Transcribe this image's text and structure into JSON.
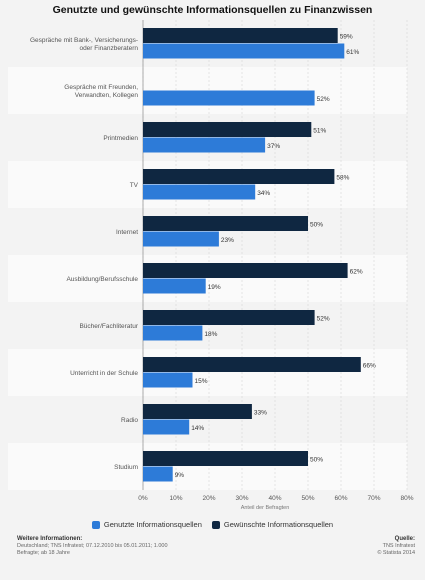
{
  "chart_data": {
    "type": "bar",
    "orientation": "horizontal",
    "title": "Genutzte und gewünschte Informationsquellen zu Finanzwissen",
    "xlabel": "Anteil der Befragten",
    "ylabel": "",
    "xlim": [
      0,
      80
    ],
    "x_ticks": [
      "0%",
      "10%",
      "20%",
      "30%",
      "40%",
      "50%",
      "60%",
      "70%",
      "80%"
    ],
    "grid": true,
    "legend_position": "bottom",
    "categories": [
      "Gespräche mit Bank-, Versicherungs- oder Finanzberatern",
      "Gespräche mit Freunden, Verwandten, Kollegen",
      "Printmedien",
      "TV",
      "Internet",
      "Ausbildung/Berufsschule",
      "Bücher/Fachliteratur",
      "Unterricht in der Schule",
      "Radio",
      "Studium"
    ],
    "category_lines": [
      [
        "Gespräche mit Bank-, Versicherungs-",
        "oder Finanzberatern"
      ],
      [
        "Gespräche mit Freunden,",
        "Verwandten, Kollegen"
      ],
      [
        "Printmedien"
      ],
      [
        "TV"
      ],
      [
        "Internet"
      ],
      [
        "Ausbildung/Berufsschule"
      ],
      [
        "Bücher/Fachliteratur"
      ],
      [
        "Unterricht in der Schule"
      ],
      [
        "Radio"
      ],
      [
        "Studium"
      ]
    ],
    "series": [
      {
        "name": "Gewünschte Informationsquellen",
        "color": "#0f2741",
        "values": [
          59,
          null,
          51,
          58,
          50,
          62,
          52,
          66,
          33,
          50
        ],
        "labels": [
          "59%",
          "",
          "51%",
          "58%",
          "50%",
          "62%",
          "52%",
          "66%",
          "33%",
          "50%"
        ]
      },
      {
        "name": "Genutzte Informationsquellen",
        "color": "#2d7bd8",
        "values": [
          61,
          52,
          37,
          34,
          23,
          19,
          18,
          15,
          14,
          9
        ],
        "labels": [
          "61%",
          "52%",
          "37%",
          "34%",
          "23%",
          "19%",
          "18%",
          "15%",
          "14%",
          "9%"
        ]
      }
    ]
  },
  "legend": {
    "items": [
      {
        "label": "Genutzte Informationsquellen",
        "color": "#2d7bd8"
      },
      {
        "label": "Gewünschte Informationsquellen",
        "color": "#0f2741"
      }
    ]
  },
  "footer": {
    "info_heading": "Weitere Informationen:",
    "info_line1": "Deutschland; TNS Infratest; 07.12.2010 bis 05.01.2011; 1.000",
    "info_line2": "Befragte; ab 18 Jahre",
    "source_heading": "Quelle:",
    "source_line1": "TNS Infratest",
    "source_line2": "© Statista 2014"
  }
}
